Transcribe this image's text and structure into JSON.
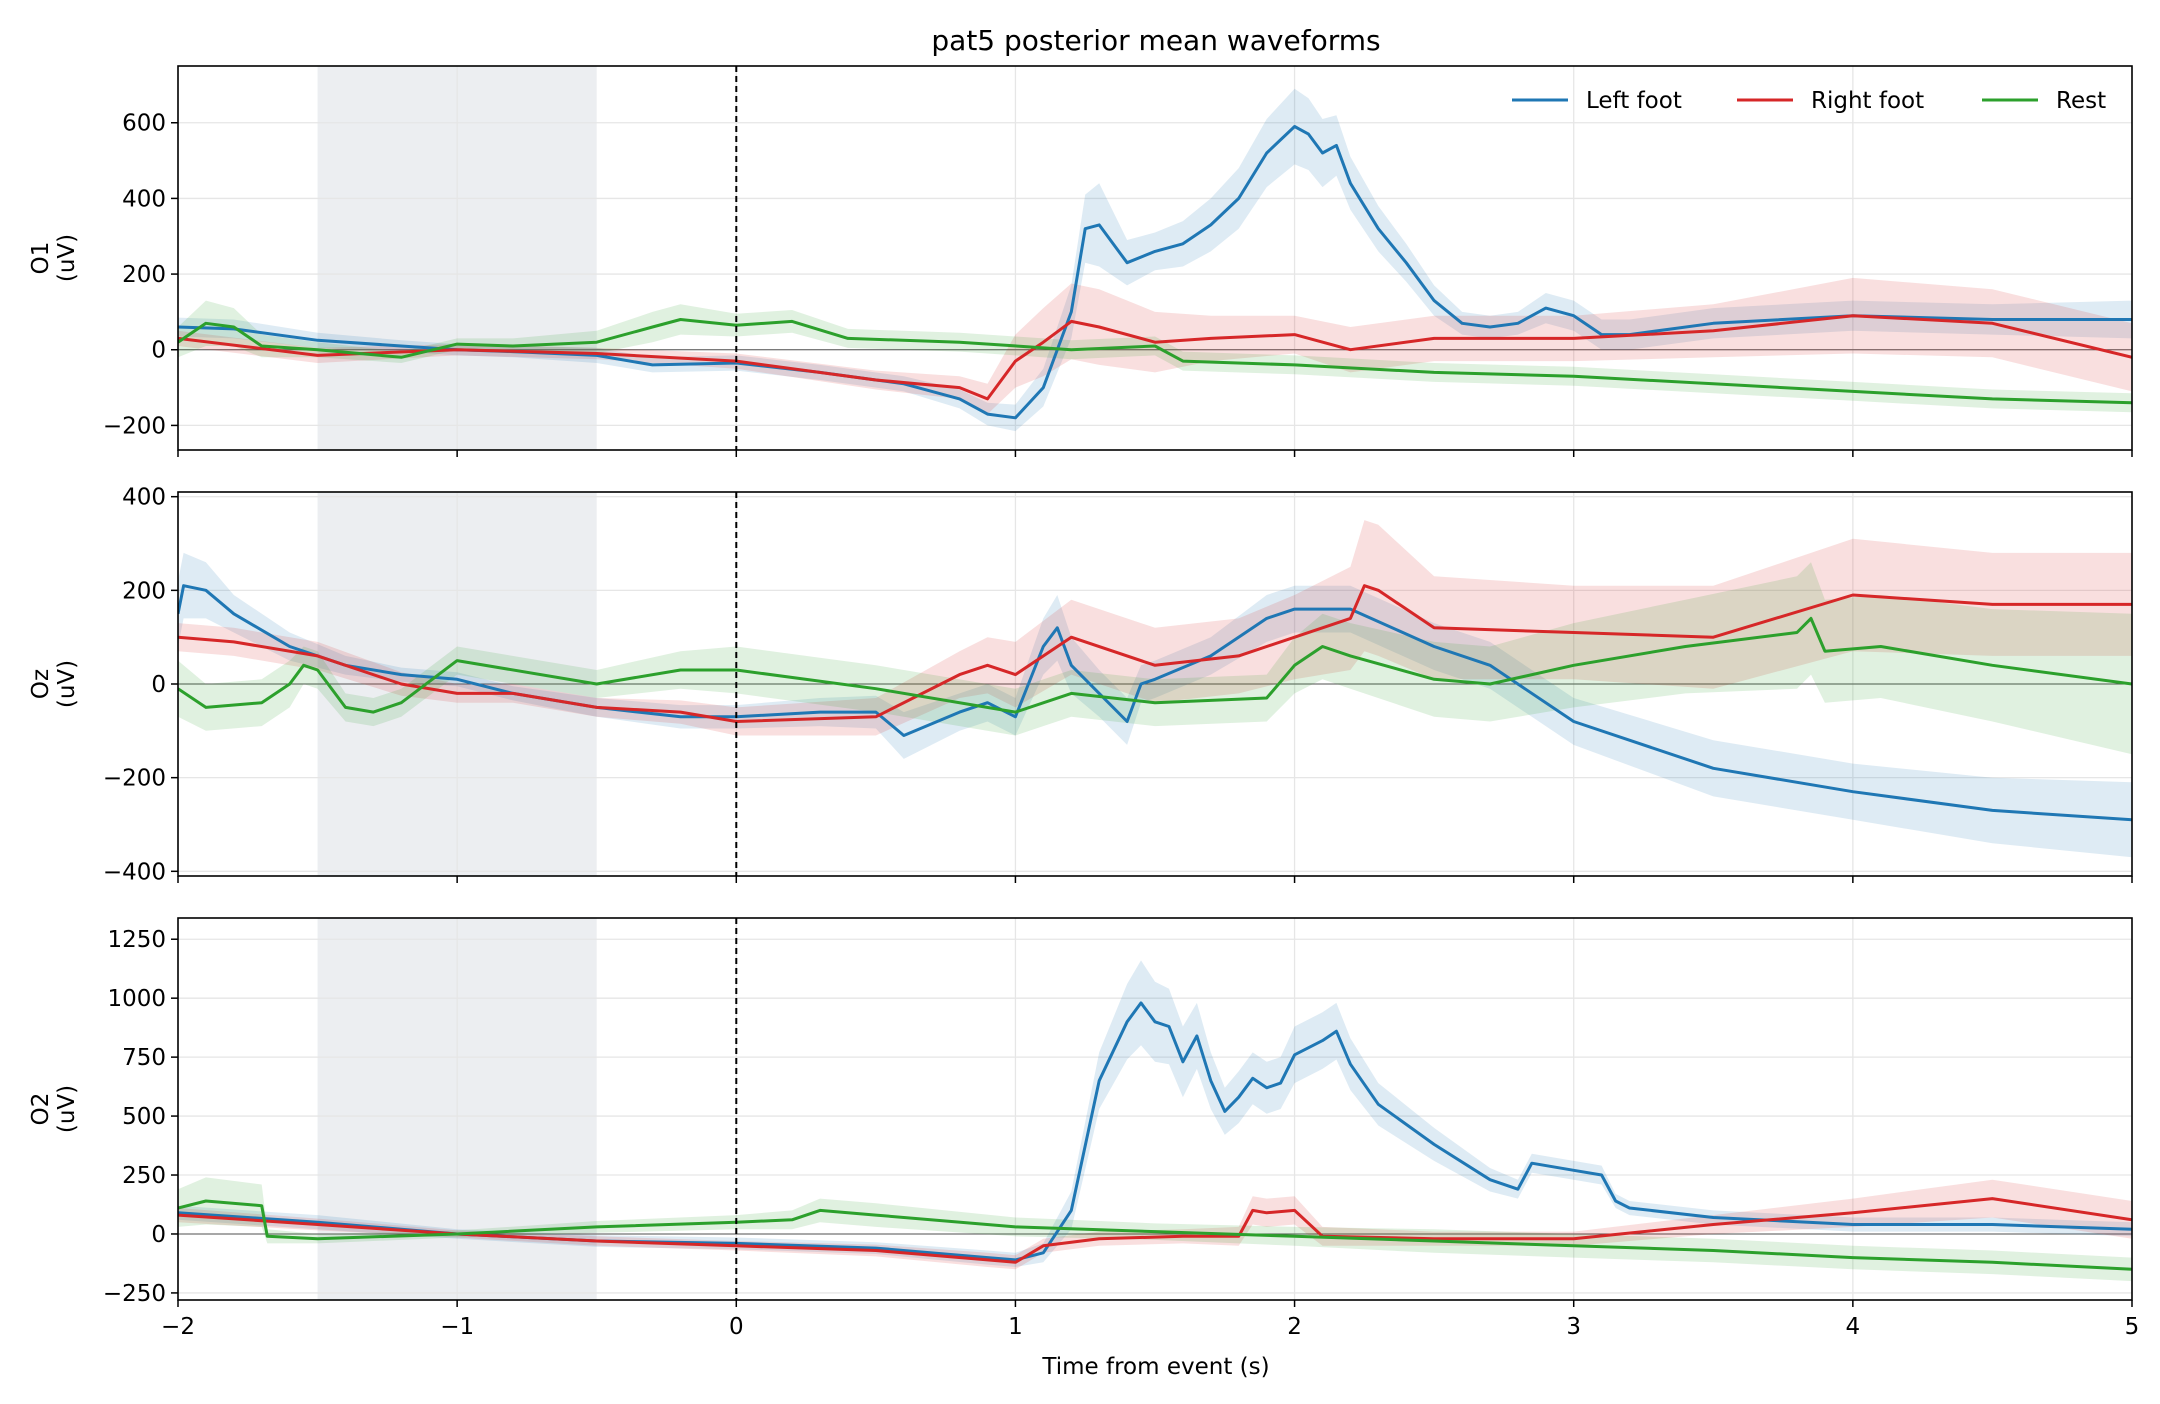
{
  "chart_data": {
    "type": "line",
    "title": "pat5 posterior mean waveforms",
    "xlabel": "Time from event (s)",
    "xlim": [
      -2,
      5
    ],
    "xticks": [
      -2,
      -1,
      0,
      1,
      2,
      3,
      4,
      5
    ],
    "xtick_labels": [
      "−2",
      "−1",
      "0",
      "1",
      "2",
      "3",
      "4",
      "5"
    ],
    "shaded_window": [
      -1.5,
      -0.5
    ],
    "event_line": 0,
    "grid": true,
    "legend": {
      "location": "top-right of first panel",
      "entries": [
        "Left foot",
        "Right foot",
        "Rest"
      ]
    },
    "colors": {
      "Left foot": "#1f77b4",
      "Right foot": "#d62728",
      "Rest": "#2ca02c",
      "shade": "#eceef1"
    },
    "panels": [
      {
        "channel": "O1",
        "ylabel_lines": [
          "O1",
          "(uV)"
        ],
        "ylim": [
          -265,
          750
        ],
        "yticks": [
          -200,
          0,
          200,
          400,
          600
        ],
        "ytick_labels": [
          "−200",
          "0",
          "200",
          "400",
          "600"
        ],
        "series": [
          {
            "name": "Left foot",
            "x": [
              -2,
              -1.8,
              -1.5,
              -1.2,
              -1.0,
              -0.8,
              -0.5,
              -0.3,
              0,
              0.3,
              0.6,
              0.8,
              0.9,
              1.0,
              1.1,
              1.2,
              1.25,
              1.3,
              1.4,
              1.5,
              1.6,
              1.7,
              1.8,
              1.9,
              2.0,
              2.05,
              2.1,
              2.15,
              2.2,
              2.3,
              2.4,
              2.5,
              2.6,
              2.7,
              2.8,
              2.9,
              3.0,
              3.1,
              3.2,
              3.5,
              4.0,
              4.5,
              5.0
            ],
            "y": [
              60,
              55,
              25,
              10,
              0,
              -5,
              -15,
              -40,
              -35,
              -60,
              -90,
              -130,
              -170,
              -180,
              -100,
              100,
              320,
              330,
              230,
              260,
              280,
              330,
              400,
              520,
              590,
              570,
              520,
              540,
              440,
              320,
              230,
              130,
              70,
              60,
              70,
              110,
              90,
              40,
              40,
              70,
              90,
              80,
              80
            ],
            "band": [
              25,
              25,
              20,
              15,
              15,
              15,
              20,
              20,
              20,
              20,
              20,
              25,
              30,
              35,
              50,
              70,
              90,
              110,
              60,
              50,
              60,
              70,
              80,
              90,
              100,
              95,
              90,
              80,
              70,
              60,
              50,
              40,
              30,
              30,
              30,
              40,
              40,
              40,
              40,
              40,
              40,
              40,
              50
            ]
          },
          {
            "name": "Right foot",
            "x": [
              -2,
              -1.5,
              -1.0,
              -0.5,
              0,
              0.5,
              0.8,
              0.9,
              1.0,
              1.1,
              1.2,
              1.3,
              1.5,
              1.7,
              2.0,
              2.2,
              2.5,
              3.0,
              3.5,
              4.0,
              4.5,
              5.0
            ],
            "y": [
              30,
              -15,
              0,
              -10,
              -30,
              -80,
              -100,
              -130,
              -30,
              20,
              75,
              60,
              20,
              30,
              40,
              0,
              30,
              30,
              50,
              90,
              70,
              -20
            ],
            "band": [
              20,
              20,
              15,
              15,
              20,
              25,
              30,
              40,
              70,
              90,
              100,
              100,
              80,
              60,
              50,
              60,
              60,
              60,
              70,
              100,
              90,
              90
            ]
          },
          {
            "name": "Rest",
            "x": [
              -2,
              -1.9,
              -1.8,
              -1.7,
              -1.5,
              -1.2,
              -1.0,
              -0.8,
              -0.5,
              -0.3,
              -0.2,
              0,
              0.2,
              0.4,
              0.8,
              1.2,
              1.5,
              1.6,
              2.0,
              2.5,
              3.0,
              3.5,
              4.0,
              4.5,
              5.0
            ],
            "y": [
              20,
              70,
              60,
              10,
              0,
              -20,
              15,
              10,
              20,
              60,
              80,
              65,
              75,
              30,
              20,
              0,
              10,
              -30,
              -40,
              -60,
              -70,
              -90,
              -110,
              -130,
              -140
            ],
            "band": [
              40,
              60,
              50,
              30,
              20,
              15,
              15,
              20,
              30,
              40,
              40,
              30,
              30,
              25,
              25,
              25,
              25,
              25,
              25,
              25,
              25,
              25,
              25,
              25,
              25
            ]
          }
        ]
      },
      {
        "channel": "Oz",
        "ylabel_lines": [
          "Oz",
          "(uV)"
        ],
        "ylim": [
          -410,
          410
        ],
        "yticks": [
          -400,
          -200,
          0,
          200,
          400
        ],
        "ytick_labels": [
          "−400",
          "−200",
          "0",
          "200",
          "400"
        ],
        "series": [
          {
            "name": "Left foot",
            "x": [
              -2,
              -1.98,
              -1.9,
              -1.8,
              -1.6,
              -1.4,
              -1.2,
              -1.0,
              -0.8,
              -0.5,
              -0.2,
              0,
              0.3,
              0.5,
              0.6,
              0.8,
              0.9,
              1.0,
              1.1,
              1.15,
              1.2,
              1.3,
              1.4,
              1.45,
              1.5,
              1.7,
              1.9,
              2.0,
              2.2,
              2.5,
              2.7,
              3.0,
              3.5,
              4.0,
              4.5,
              5.0
            ],
            "y": [
              150,
              210,
              200,
              150,
              80,
              40,
              20,
              10,
              -20,
              -50,
              -70,
              -70,
              -60,
              -60,
              -110,
              -60,
              -40,
              -70,
              80,
              120,
              40,
              -20,
              -80,
              0,
              10,
              60,
              140,
              160,
              160,
              80,
              40,
              -80,
              -180,
              -230,
              -270,
              -290
            ],
            "band": [
              70,
              70,
              60,
              40,
              30,
              20,
              15,
              15,
              15,
              20,
              25,
              25,
              30,
              35,
              50,
              40,
              40,
              40,
              60,
              70,
              60,
              50,
              50,
              40,
              40,
              40,
              50,
              50,
              50,
              50,
              50,
              50,
              60,
              60,
              70,
              80
            ]
          },
          {
            "name": "Right foot",
            "x": [
              -2,
              -1.8,
              -1.5,
              -1.2,
              -1.0,
              -0.8,
              -0.5,
              -0.2,
              0,
              0.5,
              0.8,
              0.9,
              1.0,
              1.2,
              1.5,
              1.8,
              2.0,
              2.2,
              2.25,
              2.3,
              2.5,
              3.0,
              3.5,
              4.0,
              4.5,
              5.0
            ],
            "y": [
              100,
              90,
              60,
              0,
              -20,
              -20,
              -50,
              -60,
              -80,
              -70,
              20,
              40,
              20,
              100,
              40,
              60,
              100,
              140,
              210,
              200,
              120,
              110,
              100,
              190,
              170,
              170
            ],
            "band": [
              30,
              30,
              30,
              25,
              20,
              20,
              20,
              25,
              30,
              40,
              50,
              60,
              70,
              80,
              80,
              80,
              90,
              110,
              140,
              140,
              110,
              100,
              110,
              120,
              110,
              110
            ]
          },
          {
            "name": "Rest",
            "x": [
              -2,
              -1.9,
              -1.7,
              -1.6,
              -1.55,
              -1.5,
              -1.4,
              -1.3,
              -1.2,
              -1.0,
              -0.5,
              -0.2,
              0,
              0.5,
              1.0,
              1.2,
              1.5,
              1.9,
              2.0,
              2.1,
              2.2,
              2.5,
              2.7,
              3.0,
              3.4,
              3.8,
              3.85,
              3.9,
              4.1,
              4.5,
              5.0
            ],
            "y": [
              -10,
              -50,
              -40,
              0,
              40,
              30,
              -50,
              -60,
              -40,
              50,
              0,
              30,
              30,
              -10,
              -60,
              -20,
              -40,
              -30,
              40,
              80,
              60,
              10,
              0,
              40,
              80,
              110,
              140,
              70,
              80,
              40,
              0
            ],
            "band": [
              60,
              50,
              50,
              50,
              40,
              40,
              30,
              30,
              30,
              30,
              30,
              40,
              50,
              50,
              50,
              50,
              50,
              50,
              60,
              70,
              70,
              80,
              80,
              90,
              100,
              120,
              120,
              110,
              110,
              120,
              150
            ]
          }
        ]
      },
      {
        "channel": "O2",
        "ylabel_lines": [
          "O2",
          "(uV)"
        ],
        "ylim": [
          -280,
          1340
        ],
        "yticks": [
          -250,
          0,
          250,
          500,
          750,
          1000,
          1250
        ],
        "ytick_labels": [
          "−250",
          "0",
          "250",
          "500",
          "750",
          "1000",
          "1250"
        ],
        "series": [
          {
            "name": "Left foot",
            "x": [
              -2,
              -1.5,
              -1.0,
              -0.5,
              0,
              0.5,
              0.9,
              1.0,
              1.1,
              1.2,
              1.3,
              1.4,
              1.45,
              1.5,
              1.55,
              1.6,
              1.65,
              1.7,
              1.75,
              1.8,
              1.85,
              1.9,
              1.95,
              2.0,
              2.1,
              2.15,
              2.2,
              2.3,
              2.5,
              2.7,
              2.8,
              2.85,
              3.0,
              3.1,
              3.15,
              3.2,
              3.5,
              4.0,
              4.5,
              5.0
            ],
            "y": [
              90,
              50,
              0,
              -30,
              -40,
              -60,
              -100,
              -110,
              -80,
              100,
              650,
              900,
              980,
              900,
              880,
              730,
              840,
              650,
              520,
              580,
              660,
              620,
              640,
              760,
              820,
              860,
              720,
              550,
              380,
              230,
              190,
              300,
              270,
              250,
              140,
              110,
              70,
              40,
              40,
              20
            ],
            "band": [
              30,
              30,
              20,
              25,
              25,
              25,
              30,
              30,
              40,
              80,
              120,
              160,
              180,
              170,
              160,
              150,
              140,
              120,
              100,
              110,
              110,
              110,
              110,
              120,
              120,
              120,
              110,
              90,
              70,
              50,
              40,
              40,
              40,
              40,
              30,
              30,
              30,
              30,
              30,
              30
            ]
          },
          {
            "name": "Right foot",
            "x": [
              -2,
              -1.5,
              -1.0,
              -0.5,
              0,
              0.5,
              0.9,
              1.0,
              1.1,
              1.3,
              1.6,
              1.8,
              1.85,
              1.9,
              2.0,
              2.1,
              2.5,
              3.0,
              3.5,
              4.0,
              4.5,
              5.0
            ],
            "y": [
              80,
              40,
              0,
              -30,
              -50,
              -70,
              -110,
              -120,
              -50,
              -20,
              -10,
              -10,
              100,
              90,
              100,
              -10,
              -20,
              -20,
              40,
              90,
              150,
              60
            ],
            "band": [
              30,
              25,
              15,
              20,
              20,
              25,
              30,
              30,
              30,
              30,
              30,
              40,
              60,
              60,
              60,
              40,
              30,
              30,
              40,
              60,
              80,
              80
            ]
          },
          {
            "name": "Rest",
            "x": [
              -2,
              -1.9,
              -1.7,
              -1.68,
              -1.5,
              -1.0,
              -0.5,
              0,
              0.2,
              0.3,
              0.5,
              1.0,
              1.5,
              2.0,
              2.5,
              3.0,
              3.5,
              4.0,
              4.5,
              5.0
            ],
            "y": [
              110,
              140,
              120,
              -10,
              -20,
              0,
              30,
              50,
              60,
              100,
              80,
              30,
              10,
              -10,
              -30,
              -50,
              -70,
              -100,
              -120,
              -150
            ],
            "band": [
              80,
              100,
              90,
              30,
              20,
              15,
              25,
              30,
              40,
              50,
              50,
              40,
              35,
              40,
              50,
              50,
              50,
              50,
              50,
              50
            ]
          }
        ]
      }
    ]
  }
}
